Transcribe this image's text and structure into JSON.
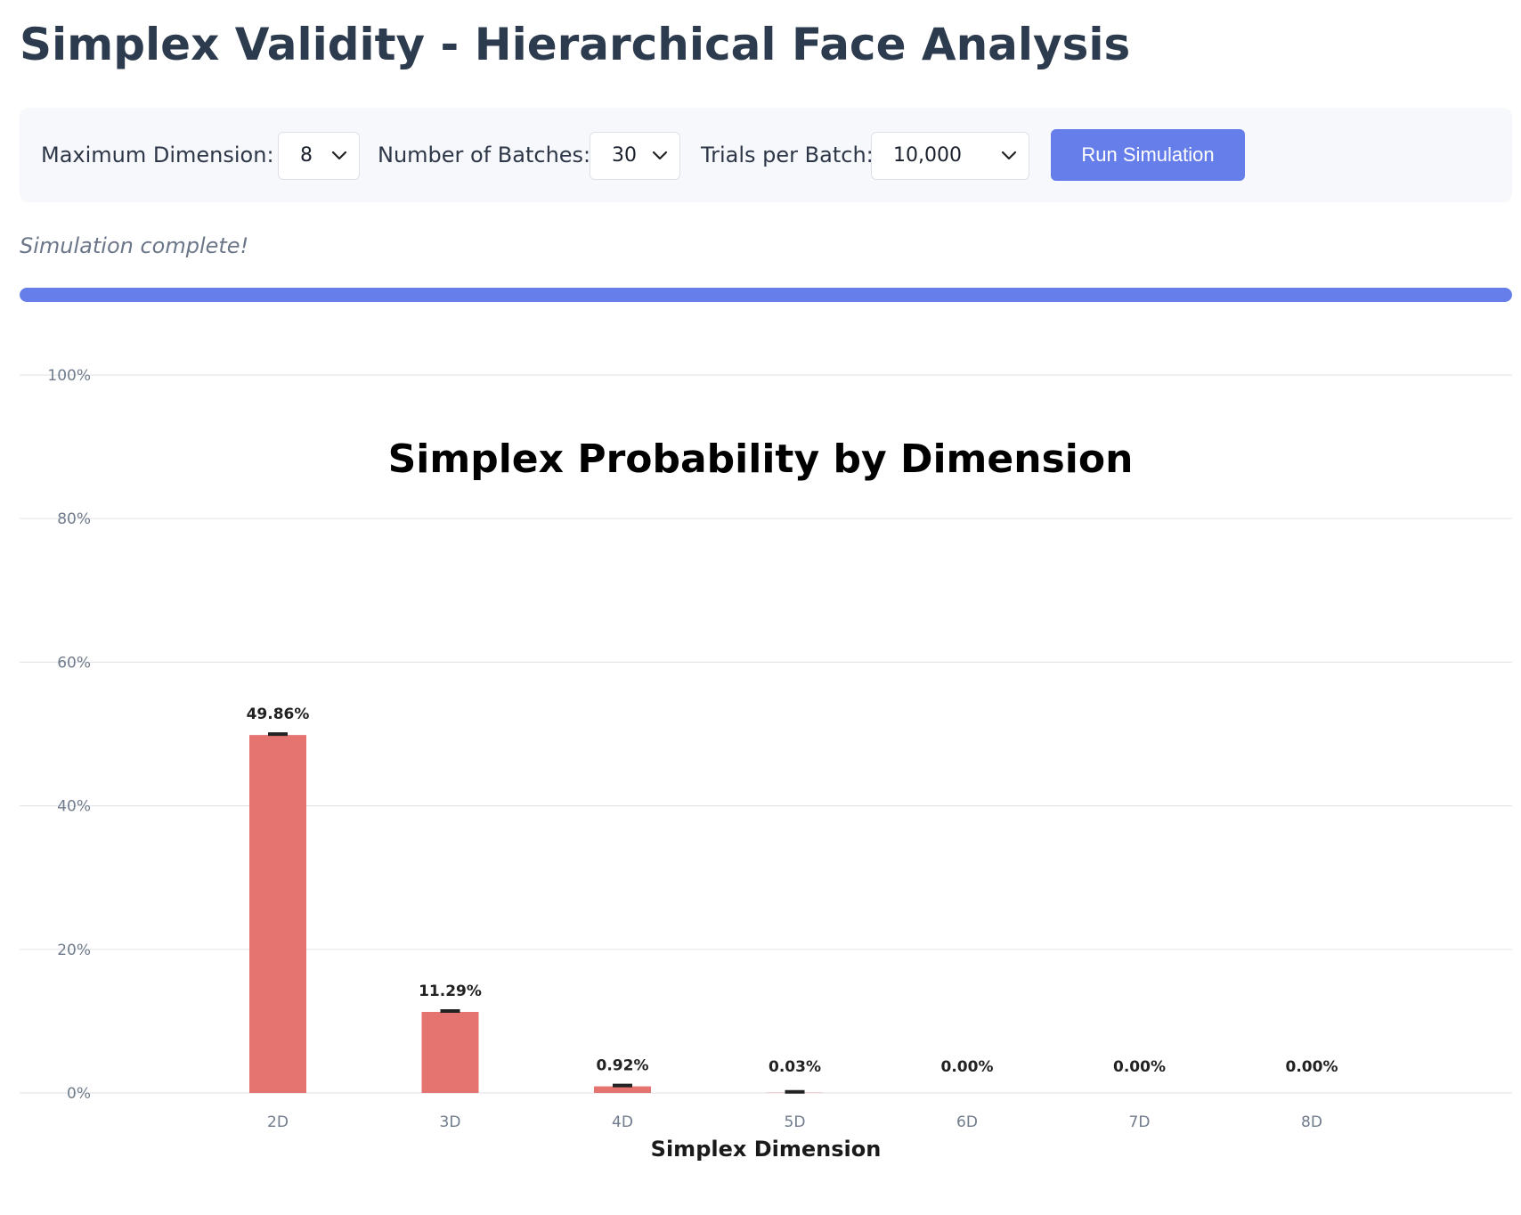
{
  "page": {
    "title": "Simplex Validity - Hierarchical Face Analysis"
  },
  "controls": {
    "max_dimension": {
      "label": "Maximum Dimension:",
      "value": "8"
    },
    "num_batches": {
      "label": "Number of Batches:",
      "value": "30"
    },
    "trials_per_batch": {
      "label": "Trials per Batch:",
      "value": "10,000"
    },
    "run_button": "Run Simulation",
    "chevron_icon": "chevron-down-icon"
  },
  "status": {
    "text": "Simulation complete!",
    "progress": 1.0
  },
  "colors": {
    "accent": "#667eea",
    "bar": "#e5736f",
    "error_bar": "#222222",
    "grid": "#e6e8ec"
  },
  "chart_data": {
    "type": "bar",
    "title": "Simplex Probability by Dimension",
    "xlabel": "Simplex Dimension",
    "ylabel": "",
    "categories": [
      "2D",
      "3D",
      "4D",
      "5D",
      "6D",
      "7D",
      "8D"
    ],
    "values": [
      49.86,
      11.29,
      0.92,
      0.03,
      0.0,
      0.0,
      0.0
    ],
    "value_labels": [
      "49.86%",
      "11.29%",
      "0.92%",
      "0.03%",
      "0.00%",
      "0.00%",
      "0.00%"
    ],
    "y_ticks": [
      0,
      20,
      40,
      60,
      80,
      100
    ],
    "y_tick_labels": [
      "0%",
      "20%",
      "40%",
      "60%",
      "80%",
      "100%"
    ],
    "ylim": [
      0,
      100
    ],
    "grid": true,
    "error_bars": true,
    "legend": "none"
  }
}
